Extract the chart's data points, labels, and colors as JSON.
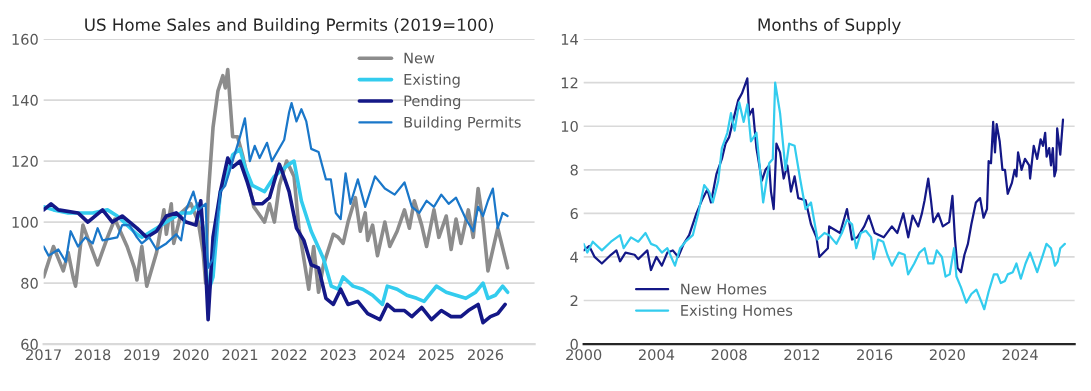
{
  "chart_data": [
    {
      "type": "line",
      "title": "US Home Sales and Building Permits (2019=100)",
      "xlim": [
        2017,
        2027
      ],
      "xticks": [
        2017,
        2018,
        2019,
        2020,
        2021,
        2022,
        2023,
        2024,
        2025,
        2026
      ],
      "ylim": [
        60,
        160
      ],
      "yticks": [
        60,
        80,
        100,
        120,
        140,
        160
      ],
      "grid": "y",
      "legend": "top right",
      "series": [
        {
          "name": "New",
          "color": "#8c8c8c",
          "x": [
            2017.0,
            2017.2,
            2017.4,
            2017.5,
            2017.6,
            2017.65,
            2017.8,
            2018.1,
            2018.3,
            2018.45,
            2018.7,
            2018.85,
            2018.9,
            2019.0,
            2019.1,
            2019.3,
            2019.45,
            2019.5,
            2019.6,
            2019.65,
            2019.8,
            2020.0,
            2020.15,
            2020.25,
            2020.3,
            2020.35,
            2020.45,
            2020.55,
            2020.65,
            2020.7,
            2020.75,
            2020.85,
            2020.95,
            2021.05,
            2021.15,
            2021.28,
            2021.5,
            2021.6,
            2021.7,
            2021.8,
            2021.95,
            2022.1,
            2022.2,
            2022.3,
            2022.4,
            2022.5,
            2022.6,
            2022.7,
            2022.9,
            2023.0,
            2023.1,
            2023.2,
            2023.35,
            2023.45,
            2023.55,
            2023.6,
            2023.7,
            2023.8,
            2023.95,
            2024.05,
            2024.2,
            2024.35,
            2024.45,
            2024.55,
            2024.7,
            2024.8,
            2024.95,
            2025.05,
            2025.2,
            2025.3,
            2025.4,
            2025.5,
            2025.65,
            2025.75,
            2025.85,
            2025.95,
            2026.05,
            2026.25,
            2026.45
          ],
          "values": [
            82,
            92,
            84,
            90,
            82,
            79,
            99,
            86,
            95,
            101,
            92,
            85,
            81,
            92,
            79,
            90,
            104,
            96,
            106,
            93,
            103,
            106,
            100,
            90,
            80,
            108,
            131,
            143,
            148,
            144,
            150,
            128,
            128,
            122,
            115,
            105,
            100,
            106,
            100,
            112,
            120,
            115,
            98,
            88,
            78,
            92,
            77,
            86,
            96,
            95,
            93,
            100,
            108,
            97,
            103,
            94,
            99,
            89,
            100,
            92,
            97,
            104,
            98,
            107,
            99,
            92,
            104,
            95,
            102,
            91,
            101,
            93,
            104,
            95,
            111,
            100,
            84,
            98,
            85
          ]
        },
        {
          "name": "Existing",
          "color": "#33ccee",
          "x": [
            2017.0,
            2017.2,
            2017.5,
            2018.0,
            2018.3,
            2018.5,
            2018.9,
            2019.0,
            2019.3,
            2019.5,
            2019.8,
            2020.0,
            2020.15,
            2020.25,
            2020.35,
            2020.45,
            2020.6,
            2020.75,
            2020.85,
            2021.0,
            2021.1,
            2021.25,
            2021.5,
            2021.7,
            2022.0,
            2022.1,
            2022.25,
            2022.45,
            2022.7,
            2022.86,
            2023.0,
            2023.1,
            2023.3,
            2023.5,
            2023.7,
            2023.9,
            2024.0,
            2024.2,
            2024.4,
            2024.6,
            2024.75,
            2025.0,
            2025.2,
            2025.4,
            2025.6,
            2025.8,
            2025.95,
            2026.05,
            2026.2,
            2026.35,
            2026.45
          ],
          "values": [
            105,
            104,
            103,
            103,
            104,
            102,
            96,
            95,
            98,
            100,
            103,
            103,
            106,
            98,
            77,
            82,
            110,
            116,
            122,
            124,
            118,
            112,
            110,
            115,
            119,
            120,
            107,
            97,
            88,
            79,
            78,
            82,
            79,
            78,
            76,
            73,
            79,
            78,
            76,
            75,
            74,
            79,
            77,
            76,
            75,
            77,
            80,
            75,
            76,
            79,
            77
          ]
        },
        {
          "name": "Pending",
          "color": "#141887",
          "x": [
            2017.0,
            2017.15,
            2017.3,
            2017.7,
            2017.9,
            2018.2,
            2018.4,
            2018.6,
            2018.9,
            2019.1,
            2019.3,
            2019.5,
            2019.7,
            2019.9,
            2020.1,
            2020.2,
            2020.3,
            2020.35,
            2020.45,
            2020.6,
            2020.75,
            2020.85,
            2021.0,
            2021.15,
            2021.28,
            2021.45,
            2021.6,
            2021.8,
            2021.85,
            2022.0,
            2022.15,
            2022.3,
            2022.45,
            2022.6,
            2022.75,
            2022.9,
            2023.05,
            2023.2,
            2023.4,
            2023.6,
            2023.85,
            2024.0,
            2024.15,
            2024.35,
            2024.5,
            2024.7,
            2024.9,
            2025.1,
            2025.3,
            2025.5,
            2025.65,
            2025.85,
            2025.95,
            2026.1,
            2026.25,
            2026.4
          ],
          "values": [
            104,
            106,
            104,
            103,
            100,
            104,
            100,
            102,
            98,
            95,
            97,
            102,
            103,
            100,
            99,
            107,
            85,
            68,
            95,
            110,
            121,
            118,
            120,
            113,
            106,
            106,
            108,
            119,
            117,
            110,
            98,
            94,
            86,
            85,
            75,
            73,
            78,
            73,
            74,
            70,
            68,
            73,
            71,
            71,
            69,
            72,
            68,
            71,
            69,
            69,
            71,
            73,
            67,
            69,
            70,
            73
          ]
        },
        {
          "name": "Building Permits",
          "color": "#1a77c9",
          "x": [
            2017.0,
            2017.1,
            2017.3,
            2017.45,
            2017.55,
            2017.7,
            2017.85,
            2018.0,
            2018.1,
            2018.2,
            2018.5,
            2018.6,
            2018.75,
            2018.9,
            2019.0,
            2019.15,
            2019.3,
            2019.5,
            2019.7,
            2019.8,
            2019.9,
            2020.05,
            2020.15,
            2020.3,
            2020.35,
            2020.45,
            2020.6,
            2020.7,
            2020.85,
            2021.0,
            2021.1,
            2021.2,
            2021.3,
            2021.4,
            2021.55,
            2021.65,
            2021.9,
            2022.0,
            2022.05,
            2022.15,
            2022.25,
            2022.35,
            2022.45,
            2022.6,
            2022.75,
            2022.85,
            2022.95,
            2023.05,
            2023.15,
            2023.25,
            2023.4,
            2023.55,
            2023.75,
            2023.95,
            2024.15,
            2024.35,
            2024.5,
            2024.65,
            2024.8,
            2024.95,
            2025.1,
            2025.25,
            2025.4,
            2025.6,
            2025.75,
            2025.85,
            2025.95,
            2026.05,
            2026.15,
            2026.25,
            2026.35,
            2026.45
          ],
          "values": [
            92,
            89,
            91,
            87,
            97,
            92,
            95,
            93,
            98,
            94,
            95,
            99,
            99,
            95,
            93,
            95,
            91,
            93,
            96,
            94,
            104,
            110,
            104,
            106,
            85,
            88,
            110,
            112,
            120,
            128,
            134,
            120,
            125,
            121,
            126,
            120,
            127,
            136,
            139,
            133,
            137,
            133,
            124,
            123,
            114,
            114,
            103,
            101,
            116,
            106,
            114,
            105,
            115,
            111,
            109,
            113,
            105,
            103,
            107,
            105,
            109,
            106,
            108,
            101,
            97,
            105,
            102,
            107,
            111,
            98,
            103,
            102
          ]
        }
      ]
    },
    {
      "type": "line",
      "title": "Months of Supply",
      "xlim": [
        2000,
        2027
      ],
      "xticks": [
        2000,
        2004,
        2008,
        2012,
        2016,
        2020,
        2024
      ],
      "ylim": [
        0,
        14
      ],
      "yticks": [
        0,
        2,
        4,
        6,
        8,
        10,
        12,
        14
      ],
      "grid": "y",
      "legend": "bottom left",
      "series": [
        {
          "name": "New Homes",
          "color": "#141887",
          "x": [
            2000.0,
            2000.3,
            2000.6,
            2001.0,
            2001.5,
            2001.8,
            2002.0,
            2002.3,
            2002.8,
            2003.0,
            2003.5,
            2003.7,
            2004.0,
            2004.3,
            2004.6,
            2004.9,
            2005.2,
            2005.5,
            2005.8,
            2006.2,
            2006.5,
            2006.8,
            2007.0,
            2007.3,
            2007.6,
            2007.8,
            2008.0,
            2008.2,
            2008.5,
            2008.7,
            2009.0,
            2009.1,
            2009.3,
            2009.5,
            2009.8,
            2010.0,
            2010.2,
            2010.3,
            2010.45,
            2010.6,
            2010.8,
            2011.0,
            2011.2,
            2011.4,
            2011.6,
            2011.8,
            2012.2,
            2012.5,
            2012.8,
            2012.96,
            2013.43,
            2013.5,
            2014.1,
            2014.48,
            2014.76,
            2015.05,
            2015.43,
            2015.68,
            2016.0,
            2016.5,
            2016.95,
            2017.25,
            2017.58,
            2017.85,
            2018.09,
            2018.4,
            2018.6,
            2018.75,
            2018.95,
            2019.1,
            2019.23,
            2019.5,
            2019.75,
            2020.1,
            2020.28,
            2020.42,
            2020.56,
            2020.75,
            2020.94,
            2021.13,
            2021.32,
            2021.57,
            2021.8,
            2021.99,
            2022.18,
            2022.27,
            2022.4,
            2022.52,
            2022.62,
            2022.71,
            2022.88,
            2023.03,
            2023.17,
            2023.32,
            2023.55,
            2023.7,
            2023.8,
            2023.89,
            2024.08,
            2024.27,
            2024.5,
            2024.55,
            2024.75,
            2024.94,
            2025.13,
            2025.26,
            2025.38,
            2025.46,
            2025.6,
            2025.7,
            2025.8,
            2025.89,
            2025.98,
            2026.04,
            2026.21,
            2026.36
          ],
          "values": [
            4.3,
            4.5,
            4.0,
            3.7,
            4.1,
            4.3,
            3.8,
            4.2,
            4.1,
            3.9,
            4.3,
            3.4,
            4.0,
            3.6,
            4.2,
            4.3,
            4.0,
            4.6,
            5.0,
            6.0,
            6.6,
            7.1,
            6.5,
            7.8,
            8.5,
            9.2,
            9.5,
            10.2,
            11.2,
            11.5,
            12.2,
            10.5,
            10.8,
            9.0,
            7.5,
            8.0,
            8.2,
            7.0,
            6.2,
            9.2,
            8.8,
            7.6,
            8.2,
            7.0,
            7.7,
            6.7,
            6.6,
            5.5,
            4.9,
            4.0,
            4.4,
            5.4,
            5.1,
            6.2,
            4.8,
            4.9,
            5.4,
            5.9,
            5.1,
            4.9,
            5.4,
            5.1,
            6.0,
            4.9,
            5.9,
            5.4,
            6.0,
            6.6,
            7.6,
            6.6,
            5.6,
            6.0,
            5.4,
            5.6,
            6.8,
            4.8,
            3.5,
            3.3,
            4.1,
            4.6,
            5.5,
            6.5,
            6.7,
            5.8,
            6.2,
            8.4,
            8.3,
            10.2,
            8.8,
            10.1,
            9.3,
            8.0,
            8.0,
            6.9,
            7.4,
            8.0,
            7.7,
            8.8,
            8.0,
            8.5,
            8.2,
            7.6,
            9.1,
            8.5,
            9.4,
            9.1,
            9.7,
            8.6,
            9.0,
            8.2,
            9.0,
            7.7,
            8.0,
            9.9,
            8.7,
            10.3
          ]
        },
        {
          "name": "Existing Homes",
          "color": "#33ccee",
          "x": [
            2000.0,
            2000.2,
            2000.5,
            2001.0,
            2001.5,
            2002.0,
            2002.2,
            2002.6,
            2003.0,
            2003.4,
            2003.7,
            2004.0,
            2004.3,
            2004.6,
            2005.02,
            2005.3,
            2005.6,
            2006.0,
            2006.3,
            2006.63,
            2006.9,
            2007.1,
            2007.4,
            2007.6,
            2007.9,
            2008.1,
            2008.3,
            2008.55,
            2008.8,
            2009.0,
            2009.2,
            2009.5,
            2009.7,
            2009.87,
            2010.2,
            2010.4,
            2010.53,
            2010.8,
            2011.1,
            2011.3,
            2011.6,
            2011.9,
            2012.2,
            2012.5,
            2012.86,
            2013.24,
            2013.5,
            2013.9,
            2014.2,
            2014.48,
            2014.76,
            2014.99,
            2015.24,
            2015.52,
            2015.81,
            2015.94,
            2016.19,
            2016.47,
            2016.7,
            2016.95,
            2017.33,
            2017.65,
            2017.84,
            2018.18,
            2018.47,
            2018.75,
            2018.95,
            2019.23,
            2019.42,
            2019.7,
            2019.9,
            2020.13,
            2020.37,
            2020.5,
            2020.75,
            2021.04,
            2021.32,
            2021.6,
            2021.89,
            2022.03,
            2022.27,
            2022.56,
            2022.75,
            2022.94,
            2023.17,
            2023.32,
            2023.6,
            2023.8,
            2024.04,
            2024.3,
            2024.55,
            2024.68,
            2024.94,
            2025.22,
            2025.45,
            2025.7,
            2025.92,
            2026.07,
            2026.21,
            2026.46
          ],
          "values": [
            4.6,
            4.2,
            4.7,
            4.3,
            4.7,
            5.0,
            4.4,
            4.9,
            4.7,
            5.1,
            4.6,
            4.5,
            4.2,
            4.4,
            3.6,
            4.4,
            4.7,
            5.0,
            6.0,
            7.3,
            7.0,
            6.5,
            7.5,
            9.0,
            9.7,
            10.6,
            9.8,
            11.1,
            10.2,
            11.0,
            9.3,
            9.7,
            8.0,
            6.5,
            8.3,
            8.5,
            12.0,
            10.6,
            8.0,
            9.2,
            9.1,
            7.6,
            6.2,
            6.5,
            4.8,
            5.1,
            5.0,
            4.6,
            5.1,
            5.7,
            5.5,
            4.4,
            5.1,
            5.2,
            4.9,
            3.9,
            4.8,
            4.7,
            4.1,
            3.6,
            4.2,
            4.1,
            3.2,
            3.7,
            4.2,
            4.4,
            3.7,
            3.7,
            4.3,
            4.0,
            3.1,
            3.2,
            4.4,
            3.1,
            2.6,
            1.9,
            2.3,
            2.5,
            1.9,
            1.6,
            2.4,
            3.2,
            3.2,
            2.8,
            2.9,
            3.2,
            3.3,
            3.7,
            3.0,
            3.7,
            4.2,
            3.9,
            3.3,
            4.0,
            4.6,
            4.4,
            3.6,
            3.8,
            4.4,
            4.6
          ]
        }
      ]
    }
  ]
}
